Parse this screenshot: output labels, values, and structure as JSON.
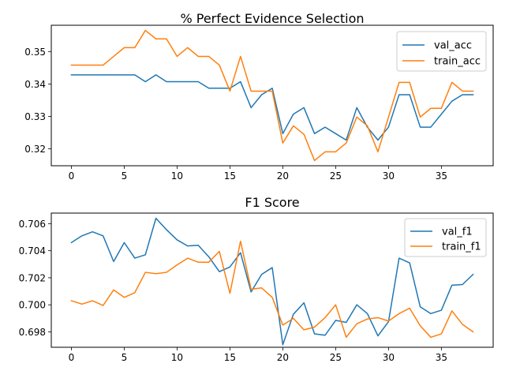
{
  "chart_data": [
    {
      "type": "line",
      "title": "% Perfect Evidence Selection",
      "xlabel": "",
      "ylabel": "",
      "xlim": [
        -1.9,
        39.9
      ],
      "ylim": [
        0.3148,
        0.3581
      ],
      "xticks": [
        0,
        5,
        10,
        15,
        20,
        25,
        30,
        35
      ],
      "xtick_labels": [
        "0",
        "5",
        "10",
        "15",
        "20",
        "25",
        "30",
        "35"
      ],
      "yticks": [
        0.32,
        0.33,
        0.34,
        0.35
      ],
      "ytick_labels": [
        "0.32",
        "0.33",
        "0.34",
        "0.35"
      ],
      "grid": false,
      "legend_position": "top-right",
      "x": [
        0,
        1,
        2,
        3,
        4,
        5,
        6,
        7,
        8,
        9,
        10,
        11,
        12,
        13,
        14,
        15,
        16,
        17,
        18,
        19,
        20,
        21,
        22,
        23,
        24,
        25,
        26,
        27,
        28,
        29,
        30,
        31,
        32,
        33,
        34,
        35,
        36,
        37,
        38
      ],
      "series": [
        {
          "name": "val_acc",
          "color": "#1f77b4",
          "values": [
            0.3428,
            0.3428,
            0.3428,
            0.3428,
            0.3428,
            0.3428,
            0.3428,
            0.3407,
            0.3428,
            0.3407,
            0.3407,
            0.3407,
            0.3407,
            0.3387,
            0.3387,
            0.3387,
            0.3407,
            0.3327,
            0.3367,
            0.3387,
            0.3247,
            0.3307,
            0.3327,
            0.3247,
            0.3267,
            0.3247,
            0.3227,
            0.3327,
            0.3267,
            0.3227,
            0.3267,
            0.3367,
            0.3367,
            0.3267,
            0.3267,
            0.3307,
            0.3347,
            0.3367,
            0.3367
          ]
        },
        {
          "name": "train_acc",
          "color": "#ff7f0e",
          "values": [
            0.3458,
            0.3458,
            0.3458,
            0.3458,
            0.3485,
            0.3512,
            0.3512,
            0.3565,
            0.3539,
            0.3539,
            0.3485,
            0.3512,
            0.3485,
            0.3485,
            0.3458,
            0.3378,
            0.3485,
            0.3378,
            0.3378,
            0.3378,
            0.3218,
            0.3271,
            0.3245,
            0.3164,
            0.3191,
            0.3191,
            0.3218,
            0.3298,
            0.3271,
            0.3191,
            0.3298,
            0.3405,
            0.3405,
            0.3298,
            0.3325,
            0.3325,
            0.3405,
            0.3378,
            0.3378
          ]
        }
      ]
    },
    {
      "type": "line",
      "title": "F1 Score",
      "xlabel": "",
      "ylabel": "",
      "xlim": [
        -1.9,
        39.9
      ],
      "ylim": [
        0.69686,
        0.70678
      ],
      "xticks": [
        0,
        5,
        10,
        15,
        20,
        25,
        30,
        35
      ],
      "xtick_labels": [
        "0",
        "5",
        "10",
        "15",
        "20",
        "25",
        "30",
        "35"
      ],
      "yticks": [
        0.698,
        0.7,
        0.702,
        0.704,
        0.706
      ],
      "ytick_labels": [
        "0.698",
        "0.700",
        "0.702",
        "0.704",
        "0.706"
      ],
      "grid": false,
      "legend_position": "top-right",
      "x": [
        0,
        1,
        2,
        3,
        4,
        5,
        6,
        7,
        8,
        9,
        10,
        11,
        12,
        13,
        14,
        15,
        16,
        17,
        18,
        19,
        20,
        21,
        22,
        23,
        24,
        25,
        26,
        27,
        28,
        29,
        30,
        31,
        32,
        33,
        34,
        35,
        36,
        37,
        38
      ],
      "series": [
        {
          "name": "val_f1",
          "color": "#1f77b4",
          "values": [
            0.7046,
            0.7051,
            0.7054,
            0.7051,
            0.7032,
            0.7046,
            0.70345,
            0.7037,
            0.7064,
            0.70555,
            0.7048,
            0.70435,
            0.7044,
            0.70355,
            0.70245,
            0.7028,
            0.70385,
            0.70095,
            0.70225,
            0.70275,
            0.69705,
            0.6993,
            0.70015,
            0.69785,
            0.69775,
            0.69885,
            0.6987,
            0.7,
            0.69935,
            0.6977,
            0.69875,
            0.70345,
            0.7031,
            0.69985,
            0.69935,
            0.6996,
            0.70145,
            0.7015,
            0.70225
          ]
        },
        {
          "name": "train_f1",
          "color": "#ff7f0e",
          "values": [
            0.7003,
            0.70005,
            0.7003,
            0.69995,
            0.7011,
            0.70055,
            0.7009,
            0.7024,
            0.7023,
            0.7024,
            0.70295,
            0.70345,
            0.70315,
            0.70315,
            0.70395,
            0.70085,
            0.7047,
            0.70115,
            0.70125,
            0.70055,
            0.6985,
            0.699,
            0.69815,
            0.69835,
            0.69905,
            0.7,
            0.6976,
            0.6986,
            0.69895,
            0.69905,
            0.6988,
            0.69935,
            0.69975,
            0.69845,
            0.6976,
            0.69785,
            0.69955,
            0.69855,
            0.698
          ]
        }
      ]
    }
  ]
}
